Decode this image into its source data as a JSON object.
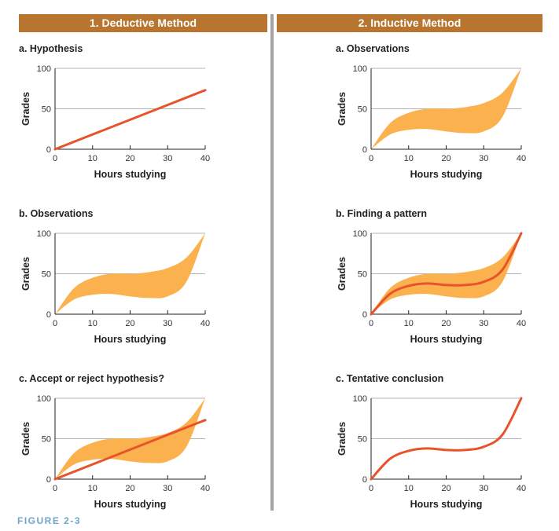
{
  "columns": [
    {
      "header": "1. Deductive Method"
    },
    {
      "header": "2. Inductive Method"
    }
  ],
  "figure_label": "FIGURE 2-3",
  "colors": {
    "header_bg": "#b8752f",
    "band": "#fbb24e",
    "line": "#e8532a",
    "figure_label": "#6ea6c8",
    "divider": "#a4a4a4"
  },
  "chart_data": [
    {
      "type": "line",
      "title": "a. Hypothesis",
      "xlabel": "Hours studying",
      "ylabel": "Grades",
      "xlim": [
        0,
        40
      ],
      "ylim": [
        0,
        100
      ],
      "xticks": [
        0,
        10,
        20,
        30,
        40
      ],
      "yticks": [
        0,
        50,
        100
      ],
      "grid": "horizontal at 50",
      "band": false,
      "curve": false,
      "linear": true,
      "series": [
        {
          "x": [
            0,
            40
          ],
          "y": [
            0,
            73
          ]
        }
      ]
    },
    {
      "type": "area",
      "title": "b. Observations",
      "xlabel": "Hours studying",
      "ylabel": "Grades",
      "xlim": [
        0,
        40
      ],
      "ylim": [
        0,
        100
      ],
      "xticks": [
        0,
        10,
        20,
        30,
        40
      ],
      "yticks": [
        0,
        50,
        100
      ],
      "grid": "horizontal at 50",
      "band": true,
      "curve": false,
      "linear": false,
      "band_upper": {
        "x": [
          0,
          5,
          10,
          15,
          20,
          25,
          30,
          35,
          40
        ],
        "y": [
          0,
          32,
          45,
          50,
          50,
          52,
          57,
          70,
          100
        ]
      },
      "band_lower": {
        "x": [
          0,
          5,
          10,
          15,
          20,
          25,
          30,
          35,
          40
        ],
        "y": [
          0,
          18,
          24,
          25,
          22,
          20,
          22,
          40,
          100
        ]
      }
    },
    {
      "type": "area",
      "title": "c. Accept or reject hypothesis?",
      "xlabel": "Hours studying",
      "ylabel": "Grades",
      "xlim": [
        0,
        40
      ],
      "ylim": [
        0,
        100
      ],
      "xticks": [
        0,
        10,
        20,
        30,
        40
      ],
      "yticks": [
        0,
        50,
        100
      ],
      "grid": "horizontal at 50",
      "band": true,
      "curve": false,
      "linear": true,
      "band_upper": {
        "x": [
          0,
          5,
          10,
          15,
          20,
          25,
          30,
          35,
          40
        ],
        "y": [
          0,
          32,
          45,
          50,
          50,
          52,
          57,
          70,
          100
        ]
      },
      "band_lower": {
        "x": [
          0,
          5,
          10,
          15,
          20,
          25,
          30,
          35,
          40
        ],
        "y": [
          0,
          18,
          24,
          25,
          22,
          20,
          22,
          40,
          100
        ]
      },
      "series": [
        {
          "x": [
            0,
            40
          ],
          "y": [
            0,
            73
          ]
        }
      ]
    },
    {
      "type": "area",
      "title": "a. Observations",
      "xlabel": "Hours studying",
      "ylabel": "Grades",
      "xlim": [
        0,
        40
      ],
      "ylim": [
        0,
        100
      ],
      "xticks": [
        0,
        10,
        20,
        30,
        40
      ],
      "yticks": [
        0,
        50,
        100
      ],
      "grid": "horizontal at 50",
      "band": true,
      "curve": false,
      "linear": false,
      "band_upper": {
        "x": [
          0,
          5,
          10,
          15,
          20,
          25,
          30,
          35,
          40
        ],
        "y": [
          0,
          32,
          45,
          50,
          50,
          52,
          57,
          70,
          100
        ]
      },
      "band_lower": {
        "x": [
          0,
          5,
          10,
          15,
          20,
          25,
          30,
          35,
          40
        ],
        "y": [
          0,
          18,
          24,
          25,
          22,
          20,
          22,
          40,
          100
        ]
      }
    },
    {
      "type": "area",
      "title": "b. Finding a pattern",
      "xlabel": "Hours studying",
      "ylabel": "Grades",
      "xlim": [
        0,
        40
      ],
      "ylim": [
        0,
        100
      ],
      "xticks": [
        0,
        10,
        20,
        30,
        40
      ],
      "yticks": [
        0,
        50,
        100
      ],
      "grid": "horizontal at 50",
      "band": true,
      "curve": true,
      "linear": false,
      "band_upper": {
        "x": [
          0,
          5,
          10,
          15,
          20,
          25,
          30,
          35,
          40
        ],
        "y": [
          0,
          32,
          45,
          50,
          50,
          52,
          57,
          70,
          100
        ]
      },
      "band_lower": {
        "x": [
          0,
          5,
          10,
          15,
          20,
          25,
          30,
          35,
          40
        ],
        "y": [
          0,
          18,
          24,
          25,
          22,
          20,
          22,
          40,
          100
        ]
      },
      "curve_points": {
        "x": [
          0,
          5,
          10,
          15,
          20,
          25,
          30,
          35,
          40
        ],
        "y": [
          0,
          25,
          35,
          38,
          36,
          36,
          40,
          55,
          100
        ]
      }
    },
    {
      "type": "line",
      "title": "c. Tentative conclusion",
      "xlabel": "Hours studying",
      "ylabel": "Grades",
      "xlim": [
        0,
        40
      ],
      "ylim": [
        0,
        100
      ],
      "xticks": [
        0,
        10,
        20,
        30,
        40
      ],
      "yticks": [
        0,
        50,
        100
      ],
      "grid": "horizontal at 50",
      "band": false,
      "curve": true,
      "linear": false,
      "curve_points": {
        "x": [
          0,
          5,
          10,
          15,
          20,
          25,
          30,
          35,
          40
        ],
        "y": [
          0,
          25,
          35,
          38,
          36,
          36,
          40,
          55,
          100
        ]
      }
    }
  ]
}
